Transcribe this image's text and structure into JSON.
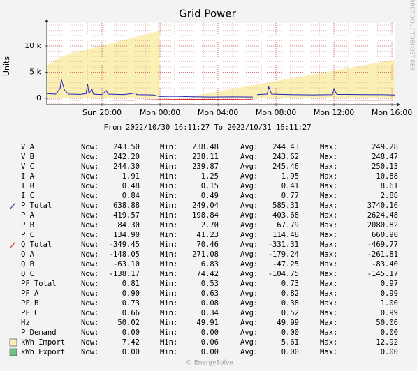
{
  "chart_data": {
    "type": "line",
    "title": "Grid Power",
    "y_label": "Units",
    "side_label": "RRDTOOL / TOBI OETIKER",
    "xlim": [
      16.19,
      40.19
    ],
    "xticks": [
      {
        "value": 20,
        "label": "Sun 20:00"
      },
      {
        "value": 24,
        "label": "Mon 00:00"
      },
      {
        "value": 28,
        "label": "Mon 04:00"
      },
      {
        "value": 32,
        "label": "Mon 08:00"
      },
      {
        "value": 36,
        "label": "Mon 12:00"
      },
      {
        "value": 40,
        "label": "Mon 16:00"
      }
    ],
    "xminorticks": [
      17,
      18,
      19,
      21,
      22,
      23,
      25,
      26,
      27,
      29,
      30,
      31,
      33,
      34,
      35,
      37,
      38,
      39
    ],
    "ylim": [
      -1200,
      14400
    ],
    "yticks": [
      0,
      {
        "value": 5000,
        "label": "5 k"
      },
      {
        "value": 10000,
        "label": "10 k"
      }
    ],
    "yminorticks": [
      -1000,
      1000,
      2000,
      3000,
      4000,
      6000,
      7000,
      8000,
      9000,
      11000,
      12000,
      13000,
      14000
    ],
    "grid": true,
    "series": [
      {
        "kind": "area",
        "color": "#fbf0b4",
        "x": [
          16.19,
          16.3,
          16.7,
          17,
          17.5,
          18,
          19,
          20,
          21,
          22,
          23,
          23.98,
          24,
          26.2,
          28,
          30,
          32,
          34,
          36,
          38,
          40.19
        ],
        "values": [
          5600,
          6500,
          7200,
          7700,
          8200,
          8700,
          9400,
          10000,
          10800,
          11500,
          12200,
          12900,
          null,
          400,
          1300,
          2300,
          3300,
          4300,
          5300,
          6300,
          7400
        ]
      },
      {
        "kind": "line",
        "color": "#2020c0",
        "x": [
          16.19,
          16.8,
          17.1,
          17.2,
          17.4,
          17.7,
          18.5,
          18.9,
          19.0,
          19.1,
          19.3,
          19.4,
          20.0,
          20.3,
          20.4,
          21.5,
          22.3,
          22.4,
          23.5,
          24.0,
          25.0,
          26.2,
          27.5,
          29.0,
          30.4,
          30.5,
          30.7,
          31.4,
          31.5,
          31.7,
          33.0,
          34.5,
          35.9,
          36.0,
          36.2,
          38.0,
          39.5,
          40.19
        ],
        "values": [
          900,
          800,
          1800,
          3600,
          1600,
          800,
          750,
          900,
          2800,
          900,
          1800,
          800,
          700,
          1500,
          800,
          700,
          1000,
          700,
          650,
          350,
          400,
          300,
          250,
          280,
          250,
          null,
          700,
          800,
          2200,
          800,
          700,
          650,
          700,
          1800,
          750,
          700,
          680,
          640
        ]
      },
      {
        "kind": "line",
        "color": "#d02020",
        "x": [
          16.19,
          18,
          20,
          22,
          24,
          26.2,
          28,
          30,
          30.4,
          30.5,
          30.7,
          32,
          34,
          36,
          38,
          40.19
        ],
        "values": [
          -300,
          -350,
          -330,
          -360,
          -250,
          -200,
          -220,
          -230,
          -240,
          null,
          -350,
          -330,
          -340,
          -350,
          -360,
          -350
        ]
      }
    ],
    "period": "From 2022/10/30 16:11:27 To 2022/10/31 16:11:27",
    "footer": "© EnergySolve",
    "legend_columns": [
      "Now:",
      "Min:",
      "Avg:",
      "Max:"
    ],
    "legend_rows": [
      {
        "name": "V A",
        "now": "243.50",
        "min": "238.48",
        "avg": "244.43",
        "max": "249.28"
      },
      {
        "name": "V B",
        "now": "242.20",
        "min": "238.11",
        "avg": "243.62",
        "max": "248.47"
      },
      {
        "name": "V C",
        "now": "244.30",
        "min": "239.87",
        "avg": "245.46",
        "max": "250.13"
      },
      {
        "name": "I A",
        "now": "1.91",
        "min": "1.25",
        "avg": "1.95",
        "max": "10.88"
      },
      {
        "name": "I B",
        "now": "0.48",
        "min": "0.15",
        "avg": "0.41",
        "max": "8.61"
      },
      {
        "name": "I C",
        "now": "0.84",
        "min": "0.49",
        "avg": "0.77",
        "max": "2.88"
      },
      {
        "name": "P Total",
        "now": "638.88",
        "min": "249.04",
        "avg": "585.31",
        "max": "3740.16",
        "swatch": "line",
        "color": "#2020c0"
      },
      {
        "name": "P A",
        "now": "419.57",
        "min": "198.84",
        "avg": "403.68",
        "max": "2624.48"
      },
      {
        "name": "P B",
        "now": "84.30",
        "min": "2.70",
        "avg": "67.79",
        "max": "2080.82"
      },
      {
        "name": "P C",
        "now": "134.90",
        "min": "41.23",
        "avg": "114.48",
        "max": "660.90"
      },
      {
        "name": "Q Total",
        "now": "-349.45",
        "min": "70.46",
        "avg": "-331.31",
        "max": "-469.77",
        "swatch": "line",
        "color": "#d02020"
      },
      {
        "name": "Q A",
        "now": "-148.05",
        "min": "271.08",
        "avg": "-179.24",
        "max": "-261.81"
      },
      {
        "name": "Q B",
        "now": "-63.10",
        "min": "6.83",
        "avg": "-47.25",
        "max": "-83.40"
      },
      {
        "name": "Q C",
        "now": "-138.17",
        "min": "74.42",
        "avg": "-104.75",
        "max": "-145.17"
      },
      {
        "name": "PF Total",
        "now": "0.81",
        "min": "0.53",
        "avg": "0.73",
        "max": "0.97"
      },
      {
        "name": "PF A",
        "now": "0.90",
        "min": "0.63",
        "avg": "0.82",
        "max": "0.99"
      },
      {
        "name": "PF B",
        "now": "0.73",
        "min": "0.08",
        "avg": "0.38",
        "max": "1.00"
      },
      {
        "name": "PF C",
        "now": "0.66",
        "min": "0.34",
        "avg": "0.52",
        "max": "0.99"
      },
      {
        "name": "Hz",
        "now": "50.02",
        "min": "49.91",
        "avg": "49.99",
        "max": "50.06"
      },
      {
        "name": "P Demand",
        "now": "0.00",
        "min": "0.00",
        "avg": "0.00",
        "max": "0.00"
      },
      {
        "name": "kWh Import",
        "now": "7.42",
        "min": "0.06",
        "avg": "5.61",
        "max": "12.92",
        "swatch": "box",
        "color": "#fbf0b4"
      },
      {
        "name": "kWh Export",
        "now": "0.00",
        "min": "0.00",
        "avg": "0.00",
        "max": "0.00",
        "swatch": "box",
        "color": "#70c080"
      }
    ]
  }
}
